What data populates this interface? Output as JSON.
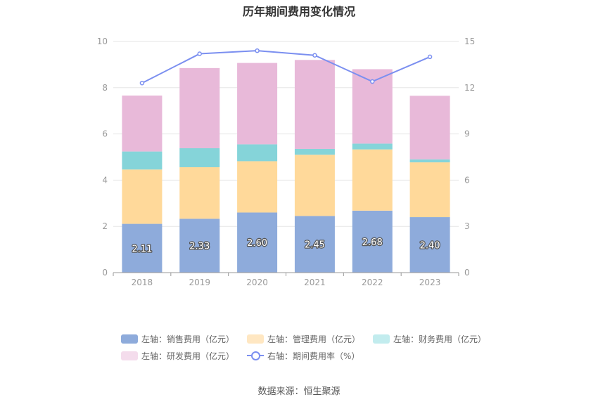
{
  "chart_data": {
    "type": "bar",
    "title": "历年期间费用变化情况",
    "categories": [
      "2018",
      "2019",
      "2020",
      "2021",
      "2022",
      "2023"
    ],
    "left_axis": {
      "min": 0,
      "max": 10,
      "ticks": [
        "0",
        "2",
        "4",
        "6",
        "8",
        "10"
      ]
    },
    "right_axis": {
      "min": 0,
      "max": 15,
      "ticks": [
        "0",
        "3",
        "6",
        "9",
        "12",
        "15"
      ]
    },
    "series": [
      {
        "name": "左轴：销售费用（亿元）",
        "axis": "left",
        "stack": true,
        "color": "#8eabdb",
        "values": [
          2.11,
          2.33,
          2.6,
          2.45,
          2.68,
          2.4
        ],
        "labels": [
          "2.11",
          "2.33",
          "2.60",
          "2.45",
          "2.68",
          "2.40"
        ]
      },
      {
        "name": "左轴：管理费用（亿元）",
        "axis": "left",
        "stack": true,
        "color": "#ffd99a",
        "values": [
          2.35,
          2.23,
          2.22,
          2.65,
          2.65,
          2.37
        ]
      },
      {
        "name": "左轴：财务费用（亿元）",
        "axis": "left",
        "stack": true,
        "color": "#85d4d9",
        "values": [
          0.78,
          0.82,
          0.73,
          0.25,
          0.25,
          0.13
        ]
      },
      {
        "name": "左轴：研发费用（亿元）",
        "axis": "left",
        "stack": true,
        "color": "#e8b9d9",
        "values": [
          2.42,
          3.47,
          3.52,
          3.85,
          3.22,
          2.75
        ]
      },
      {
        "name": "右轴：期间费用率（%）",
        "axis": "right",
        "type": "line",
        "color": "#7b8ff0",
        "values": [
          12.3,
          14.2,
          14.4,
          14.1,
          12.4,
          14.0
        ]
      }
    ],
    "legend_position": "bottom",
    "grid": true,
    "source": "数据来源：恒生聚源"
  },
  "legend": {
    "items": [
      {
        "label": "左轴：销售费用（亿元）",
        "color": "#8eabdb"
      },
      {
        "label": "左轴：管理费用（亿元）",
        "color": "#ffe7c2"
      },
      {
        "label": "左轴：财务费用（亿元）",
        "color": "#c2ecee"
      },
      {
        "label": "左轴：研发费用（亿元）",
        "color": "#f4dcec"
      },
      {
        "label": "右轴：期间费用率（%）",
        "color": "#7b8ff0"
      }
    ]
  }
}
